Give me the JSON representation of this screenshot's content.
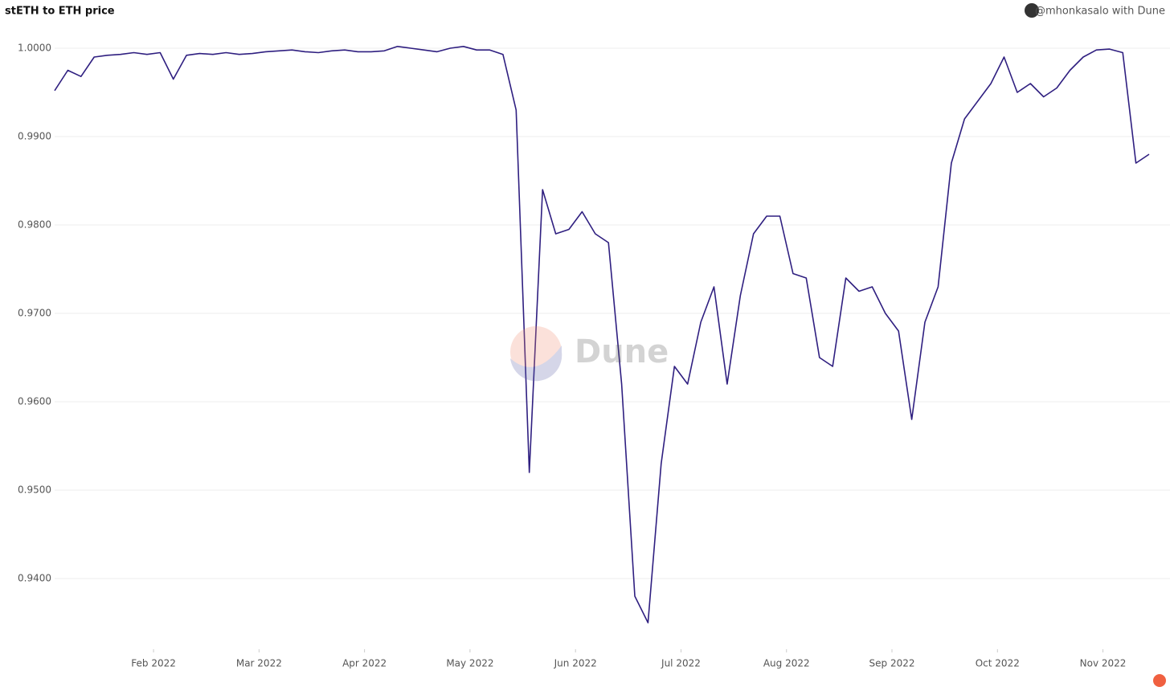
{
  "chart_data": {
    "type": "line",
    "title": "stETH to ETH price",
    "attribution": "@mhonkasalo with Dune",
    "watermark": "Dune",
    "x": [
      "Jan 2022",
      "Jan 2022",
      "Jan 2022",
      "Jan 2022",
      "Jan 2022",
      "Jan 2022",
      "Jan 2022",
      "Jan 2022",
      "Feb 2022",
      "Feb 2022",
      "Feb 2022",
      "Feb 2022",
      "Feb 2022",
      "Feb 2022",
      "Feb 2022",
      "Feb 2022",
      "Mar 2022",
      "Mar 2022",
      "Mar 2022",
      "Mar 2022",
      "Mar 2022",
      "Mar 2022",
      "Mar 2022",
      "Mar 2022",
      "Apr 2022",
      "Apr 2022",
      "Apr 2022",
      "Apr 2022",
      "Apr 2022",
      "Apr 2022",
      "Apr 2022",
      "Apr 2022",
      "May 2022",
      "May 2022",
      "May 2022",
      "May 2022",
      "May 2022",
      "May 2022",
      "May 2022",
      "May 2022",
      "Jun 2022",
      "Jun 2022",
      "Jun 2022",
      "Jun 2022",
      "Jun 2022",
      "Jun 2022",
      "Jun 2022",
      "Jun 2022",
      "Jul 2022",
      "Jul 2022",
      "Jul 2022",
      "Jul 2022",
      "Jul 2022",
      "Jul 2022",
      "Jul 2022",
      "Jul 2022",
      "Aug 2022",
      "Aug 2022",
      "Aug 2022",
      "Aug 2022",
      "Aug 2022",
      "Aug 2022",
      "Aug 2022",
      "Aug 2022",
      "Sep 2022",
      "Sep 2022",
      "Sep 2022",
      "Sep 2022",
      "Sep 2022",
      "Sep 2022",
      "Sep 2022",
      "Sep 2022",
      "Oct 2022",
      "Oct 2022",
      "Oct 2022",
      "Oct 2022",
      "Oct 2022",
      "Oct 2022",
      "Oct 2022",
      "Oct 2022",
      "Nov 2022",
      "Nov 2022",
      "Nov 2022",
      "Nov 2022"
    ],
    "series": [
      {
        "name": "stETH/ETH",
        "color": "#2f1f80",
        "values": [
          0.9952,
          0.9975,
          0.9968,
          0.999,
          0.9992,
          0.9993,
          0.9995,
          0.9993,
          0.9995,
          0.9965,
          0.9992,
          0.9994,
          0.9993,
          0.9995,
          0.9993,
          0.9994,
          0.9996,
          0.9997,
          0.9998,
          0.9996,
          0.9995,
          0.9997,
          0.9998,
          0.9996,
          0.9996,
          0.9997,
          1.0002,
          1.0,
          0.9998,
          0.9996,
          1.0,
          1.0002,
          0.9998,
          0.9998,
          0.9993,
          0.993,
          0.952,
          0.984,
          0.979,
          0.9795,
          0.9815,
          0.979,
          0.978,
          0.962,
          0.938,
          0.935,
          0.953,
          0.964,
          0.962,
          0.969,
          0.973,
          0.962,
          0.972,
          0.979,
          0.981,
          0.981,
          0.9745,
          0.974,
          0.965,
          0.964,
          0.974,
          0.9725,
          0.973,
          0.97,
          0.968,
          0.958,
          0.969,
          0.973,
          0.987,
          0.992,
          0.994,
          0.996,
          0.999,
          0.995,
          0.996,
          0.9945,
          0.9955,
          0.9975,
          0.999,
          0.9998,
          0.9999,
          0.9995,
          0.987,
          0.988
        ]
      }
    ],
    "xticks": [
      "Feb 2022",
      "Mar 2022",
      "Apr 2022",
      "May 2022",
      "Jun 2022",
      "Jul 2022",
      "Aug 2022",
      "Sep 2022",
      "Oct 2022",
      "Nov 2022"
    ],
    "ylim": [
      0.932,
      1.0015
    ],
    "yticks": [
      {
        "value": 0.94,
        "label": "0.9400"
      },
      {
        "value": 0.95,
        "label": "0.9500"
      },
      {
        "value": 0.96,
        "label": "0.9600"
      },
      {
        "value": 0.97,
        "label": "0.9700"
      },
      {
        "value": 0.98,
        "label": "0.9800"
      },
      {
        "value": 0.99,
        "label": "0.9900"
      },
      {
        "value": 1.0,
        "label": "1.0000"
      }
    ],
    "grid": true
  }
}
